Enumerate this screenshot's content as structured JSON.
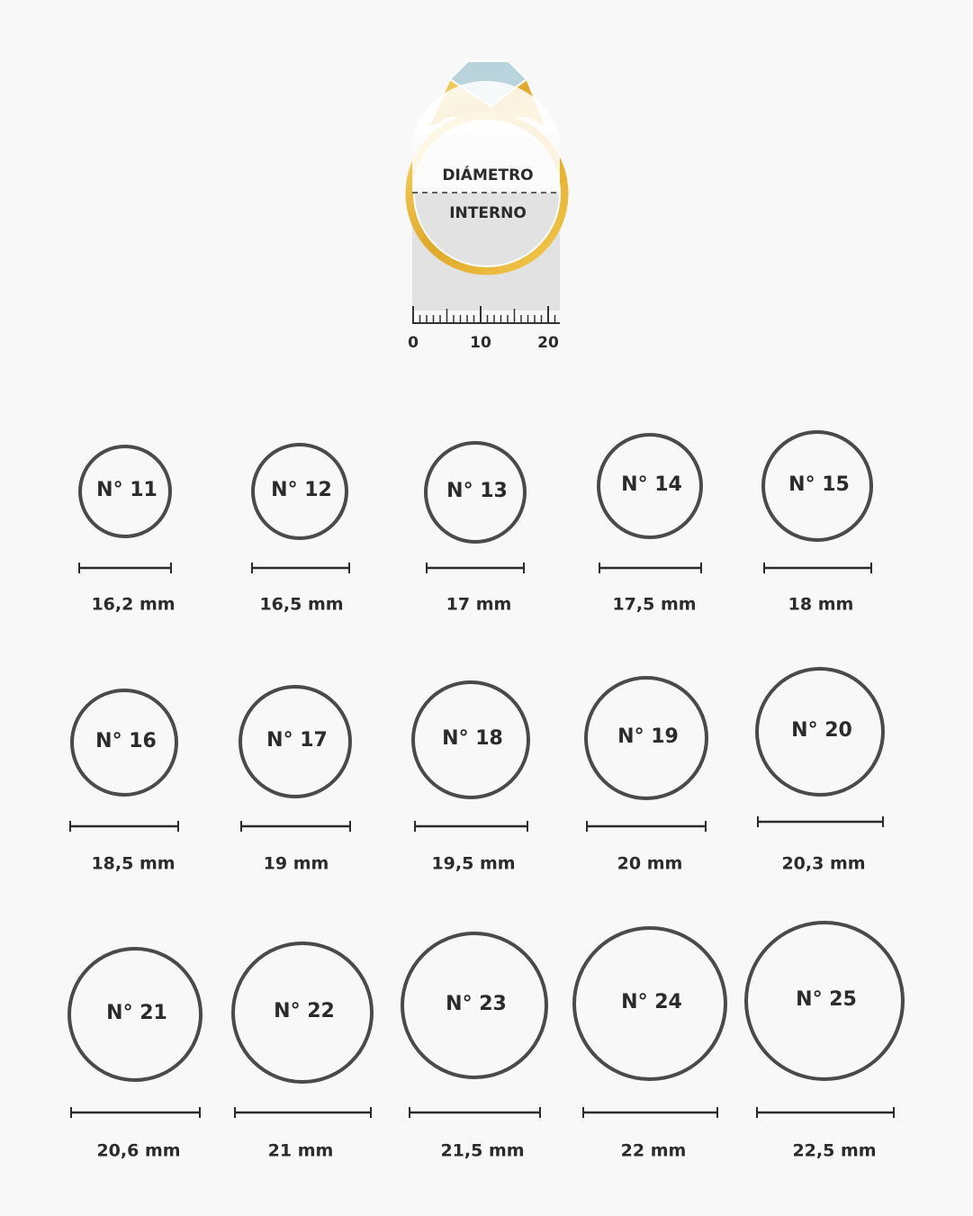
{
  "header": {
    "top_label": "DIÁMETRO",
    "bottom_label": "INTERNO",
    "ruler_ticks": [
      0,
      10,
      20
    ]
  },
  "sizes": [
    {
      "label": "N° 11",
      "measure": "16,2 mm"
    },
    {
      "label": "N° 12",
      "measure": "16,5 mm"
    },
    {
      "label": "N° 13",
      "measure": "17 mm"
    },
    {
      "label": "N° 14",
      "measure": "17,5 mm"
    },
    {
      "label": "N° 15",
      "measure": "18 mm"
    },
    {
      "label": "N° 16",
      "measure": "18,5 mm"
    },
    {
      "label": "N° 17",
      "measure": "19 mm"
    },
    {
      "label": "N° 18",
      "measure": "19,5 mm"
    },
    {
      "label": "N° 19",
      "measure": "20 mm"
    },
    {
      "label": "N° 20",
      "measure": "20,3 mm"
    },
    {
      "label": "N° 21",
      "measure": "20,6 mm"
    },
    {
      "label": "N° 22",
      "measure": "21 mm"
    },
    {
      "label": "N° 23",
      "measure": "21,5 mm"
    },
    {
      "label": "N° 24",
      "measure": "22 mm"
    },
    {
      "label": "N° 25",
      "measure": "22,5 mm"
    }
  ]
}
